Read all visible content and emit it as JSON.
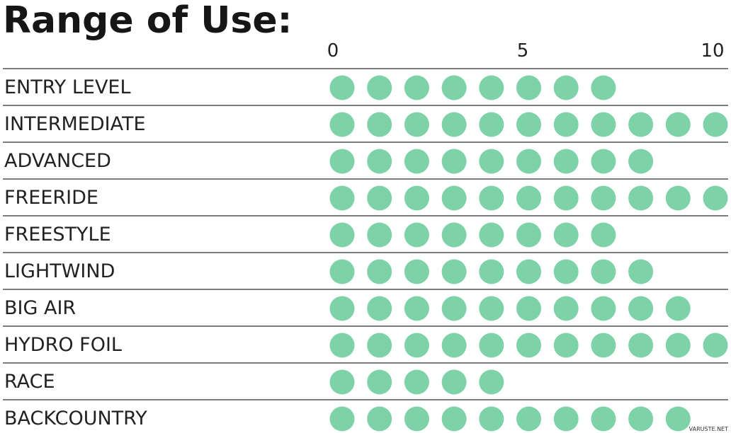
{
  "chart_data": {
    "type": "dot-rating",
    "title": "Range of Use:",
    "xlim": [
      0,
      10
    ],
    "ticks": [
      "0",
      "5",
      "10"
    ],
    "tick_values": [
      0,
      5,
      10
    ],
    "dot_color": "#7dd3a7",
    "line_color": "#2a2a2a",
    "rows": [
      {
        "label": "ENTRY LEVEL",
        "value": 8
      },
      {
        "label": "INTERMEDIATE",
        "value": 11
      },
      {
        "label": "ADVANCED",
        "value": 9
      },
      {
        "label": "FREERIDE",
        "value": 11
      },
      {
        "label": "FREESTYLE",
        "value": 8
      },
      {
        "label": "LIGHTWIND",
        "value": 9
      },
      {
        "label": "BIG AIR",
        "value": 10
      },
      {
        "label": "HYDRO FOIL",
        "value": 11
      },
      {
        "label": "RACE",
        "value": 5
      },
      {
        "label": "BACKCOUNTRY",
        "value": 10
      }
    ]
  },
  "watermark": "VARUSTE.NET"
}
